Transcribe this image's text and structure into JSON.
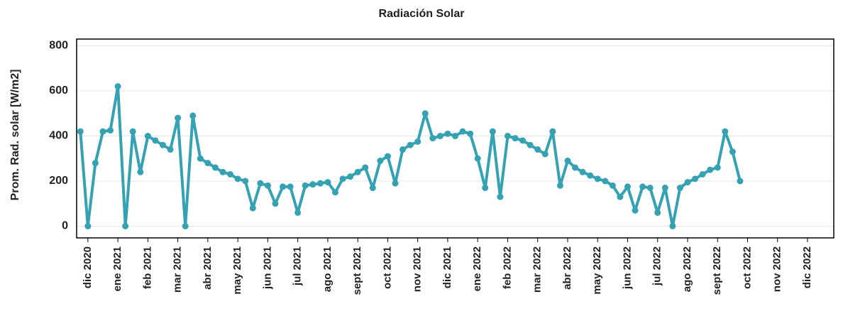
{
  "chart_data": {
    "type": "line",
    "title": "Radiación Solar",
    "y_label": "Prom. Rad. solar [W/m2]",
    "categories": [
      null,
      "dic 2020",
      null,
      null,
      null,
      "ene 2021",
      null,
      null,
      null,
      "feb 2021",
      null,
      null,
      null,
      "mar 2021",
      null,
      null,
      null,
      "abr 2021",
      null,
      null,
      null,
      "may 2021",
      null,
      null,
      null,
      "jun 2021",
      null,
      null,
      null,
      "jul 2021",
      null,
      null,
      null,
      "ago 2021",
      null,
      null,
      null,
      "sept 2021",
      null,
      null,
      null,
      "oct 2021",
      null,
      null,
      null,
      "nov 2021",
      null,
      null,
      null,
      "dic 2021",
      null,
      null,
      null,
      "ene 2022",
      null,
      null,
      null,
      "feb 2022",
      null,
      null,
      null,
      "mar 2022",
      null,
      null,
      null,
      "abr 2022",
      null,
      null,
      null,
      "may 2022",
      null,
      null,
      null,
      "jun 2022",
      null,
      null,
      null,
      "jul 2022",
      null,
      null,
      null,
      "ago 2022",
      null,
      null,
      null,
      "sept 2022",
      null,
      null,
      null,
      "oct 2022",
      null,
      null,
      null,
      "nov 2022",
      null,
      null,
      null,
      "dic 2022",
      null,
      null,
      null
    ],
    "series": [
      {
        "name": "Prom. Rad. solar",
        "color": "#35a2b4",
        "values": [
          420,
          0,
          280,
          420,
          425,
          620,
          0,
          420,
          240,
          400,
          380,
          360,
          340,
          480,
          0,
          490,
          300,
          280,
          260,
          240,
          230,
          210,
          200,
          80,
          190,
          180,
          100,
          175,
          175,
          60,
          180,
          185,
          190,
          195,
          150,
          210,
          220,
          240,
          260,
          170,
          290,
          310,
          190,
          340,
          360,
          375,
          500,
          390,
          400,
          410,
          400,
          420,
          410,
          300,
          170,
          420,
          130,
          400,
          390,
          380,
          360,
          340,
          320,
          420,
          180,
          290,
          260,
          240,
          225,
          210,
          200,
          180,
          130,
          175,
          70,
          175,
          170,
          60,
          170,
          0,
          170,
          195,
          210,
          230,
          250,
          260,
          420,
          330,
          200,
          null,
          null,
          null,
          null,
          null,
          null,
          null,
          null,
          null,
          null,
          null,
          null
        ]
      }
    ],
    "ylim": [
      -52,
      830
    ],
    "yticks": [
      0,
      200,
      400,
      600,
      800
    ],
    "grid": true
  }
}
